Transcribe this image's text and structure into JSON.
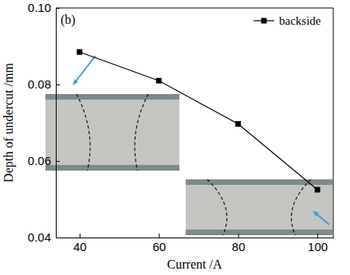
{
  "chart_data": {
    "type": "line",
    "annotation": "(b)",
    "x_label": "Current /A",
    "y_label": "Depth of undercut /mm",
    "x": [
      40,
      60,
      80,
      100
    ],
    "series": [
      {
        "name": "backside",
        "color": "#000000",
        "marker": "square",
        "line_style": "solid",
        "values": [
          0.0885,
          0.081,
          0.0697,
          0.0525
        ]
      }
    ],
    "xlim": [
      34,
      104
    ],
    "xticks": [
      40,
      60,
      80,
      100
    ],
    "ylim": [
      0.04,
      0.1
    ],
    "yticks": [
      0.04,
      0.06,
      0.08,
      {
        "value": 0.1,
        "label": "0.10"
      }
    ],
    "legend": "upper right",
    "grid": false
  }
}
